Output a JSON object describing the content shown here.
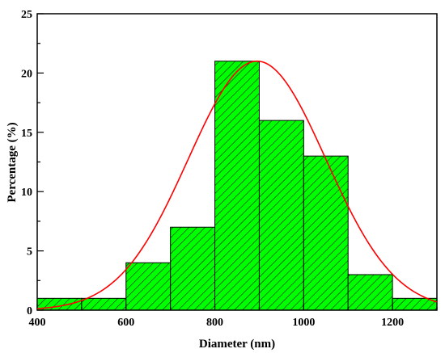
{
  "chart_data": {
    "type": "bar",
    "subtype": "histogram",
    "title": "",
    "xlabel": "Diameter (nm)",
    "ylabel": "Percentage (%)",
    "xlim": [
      400,
      1300
    ],
    "ylim": [
      0,
      25
    ],
    "xticks": [
      400,
      600,
      800,
      1000,
      1200
    ],
    "yticks": [
      0,
      5,
      10,
      15,
      20,
      25
    ],
    "bin_width": 100,
    "bins": [
      {
        "start": 400,
        "end": 500,
        "value": 1
      },
      {
        "start": 500,
        "end": 600,
        "value": 1
      },
      {
        "start": 600,
        "end": 700,
        "value": 4
      },
      {
        "start": 700,
        "end": 800,
        "value": 7
      },
      {
        "start": 800,
        "end": 900,
        "value": 21
      },
      {
        "start": 900,
        "end": 1000,
        "value": 16
      },
      {
        "start": 1000,
        "end": 1100,
        "value": 13
      },
      {
        "start": 1100,
        "end": 1200,
        "value": 3
      },
      {
        "start": 1200,
        "end": 1300,
        "value": 1
      }
    ],
    "fit_curve": {
      "type": "gaussian",
      "peak_x": 895,
      "peak_y": 21,
      "sigma": 155,
      "color": "#ff0000"
    },
    "bar_fill_color": "#00ff00",
    "bar_hatch_color": "#000000",
    "grid": false,
    "legend": "none"
  }
}
